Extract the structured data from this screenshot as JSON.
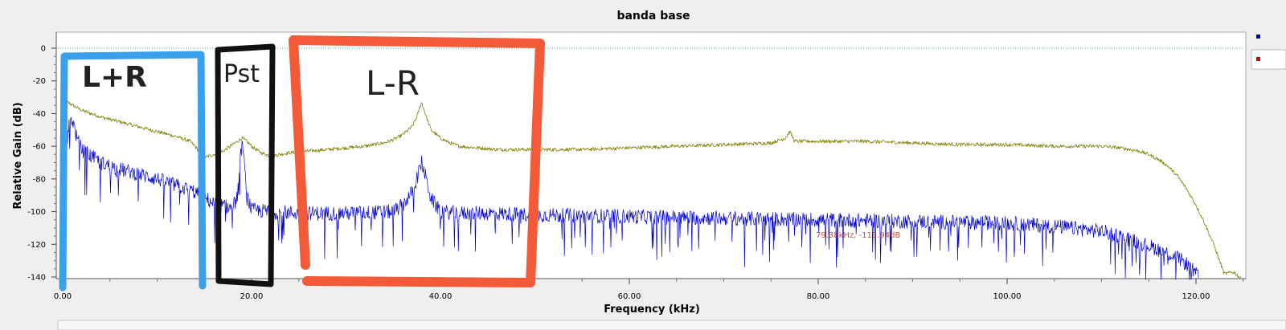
{
  "chart_data": {
    "type": "line",
    "title": "banda base",
    "xlabel": "Frequency (kHz)",
    "ylabel": "Relative Gain (dB)",
    "xlim": [
      0,
      125
    ],
    "ylim": [
      -140,
      10
    ],
    "x_ticks": [
      0,
      20,
      40,
      60,
      80,
      100,
      120
    ],
    "x_tick_labels": [
      "0.00",
      "20.00",
      "40.00",
      "60.00",
      "80.00",
      "100.00",
      "120.00"
    ],
    "y_ticks": [
      0,
      -20,
      -40,
      -60,
      -80,
      -100,
      -120,
      -140
    ],
    "y_tick_labels": [
      "0",
      "-20",
      "-40",
      "-60",
      "-80",
      "-100",
      "-120",
      "-140"
    ],
    "grid": false,
    "reference_line_db": 0,
    "legend_location": "top-right",
    "marker_text": "79.38kHz, -113.94dB",
    "series": [
      {
        "color": "#808000",
        "x": [
          0,
          0.5,
          2,
          4,
          6,
          8,
          10,
          12,
          13.5,
          14,
          15,
          16,
          17,
          18,
          18.5,
          19,
          19.5,
          20,
          21,
          22,
          24,
          26,
          28,
          30,
          32,
          34,
          35,
          36,
          37,
          37.5,
          38,
          38.5,
          39,
          40,
          41,
          42,
          44,
          46,
          50,
          55,
          60,
          65,
          70,
          75,
          76.5,
          77,
          77.5,
          80,
          85,
          90,
          95,
          100,
          105,
          108,
          110,
          112,
          113,
          114,
          115,
          116,
          117,
          118,
          119,
          120,
          121,
          122,
          123,
          124,
          124.8
        ],
        "y": [
          -36,
          -33,
          -38,
          -42,
          -45,
          -48,
          -51,
          -54,
          -57,
          -60,
          -67,
          -65,
          -63,
          -59,
          -57,
          -55,
          -57,
          -60,
          -64,
          -66,
          -64,
          -63,
          -62,
          -61,
          -60,
          -58,
          -56,
          -53,
          -48,
          -42,
          -33,
          -42,
          -50,
          -55,
          -58,
          -60,
          -61,
          -62,
          -62,
          -62,
          -61,
          -60,
          -59,
          -58,
          -55,
          -51,
          -57,
          -57,
          -57,
          -58,
          -59,
          -59,
          -60,
          -60,
          -60,
          -61,
          -62,
          -63,
          -65,
          -68,
          -72,
          -78,
          -86,
          -96,
          -108,
          -122,
          -138,
          -137,
          -141
        ]
      },
      {
        "color": "#0000cc",
        "x": [
          0.5,
          1,
          1.5,
          2,
          3,
          4,
          5,
          6,
          8,
          10,
          12,
          14,
          16,
          18,
          18.5,
          19,
          19.5,
          20,
          22,
          25,
          30,
          35,
          36,
          37,
          37.5,
          38,
          38.5,
          39,
          40,
          42,
          45,
          50,
          60,
          70,
          80,
          90,
          100,
          105,
          110,
          112,
          114,
          116,
          118,
          119,
          120,
          120.3
        ],
        "y": [
          -50,
          -43,
          -55,
          -62,
          -66,
          -70,
          -72,
          -74,
          -77,
          -80,
          -84,
          -88,
          -95,
          -98,
          -90,
          -56,
          -90,
          -99,
          -100,
          -101,
          -101,
          -100,
          -96,
          -88,
          -80,
          -70,
          -80,
          -92,
          -100,
          -101,
          -101,
          -102,
          -103,
          -104,
          -105,
          -106,
          -107,
          -109,
          -112,
          -115,
          -119,
          -123,
          -128,
          -132,
          -138,
          -141
        ]
      }
    ],
    "annotations": [
      {
        "text": "L+R",
        "color": "#3aa0ec"
      },
      {
        "text": "Pst",
        "color": "#111111"
      },
      {
        "text": "L-R",
        "color": "#f25a38"
      }
    ]
  },
  "colors": {
    "background": "#efefef",
    "plot_background": "#ffffff",
    "reference_line": "#3aa89c",
    "legend_blue": "#0000cc",
    "legend_red": "#dd0000"
  }
}
